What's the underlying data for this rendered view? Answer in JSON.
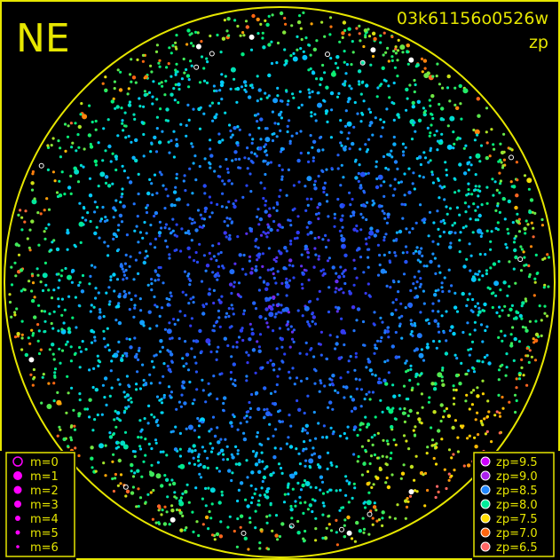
{
  "chart_data": {
    "type": "scatter",
    "title": "NE",
    "image_id": "03k61156o0526w",
    "quantity": "zp",
    "colormap_levels": [
      {
        "label": "zp=9.5",
        "zp": 9.5,
        "color": "#cc00ff"
      },
      {
        "label": "zp=9.0",
        "zp": 9.0,
        "color": "#aa22ee"
      },
      {
        "label": "zp=8.5",
        "zp": 8.5,
        "color": "#2288ff"
      },
      {
        "label": "zp=8.0",
        "zp": 8.0,
        "color": "#00ee99"
      },
      {
        "label": "zp=7.5",
        "zp": 7.5,
        "color": "#ffdd00"
      },
      {
        "label": "zp=7.0",
        "zp": 7.0,
        "color": "#ff6611"
      },
      {
        "label": "zp=6.5",
        "zp": 6.5,
        "color": "#ff6666"
      }
    ],
    "magnitude_levels": [
      {
        "label": "m=0",
        "m": 0
      },
      {
        "label": "m=1",
        "m": 1
      },
      {
        "label": "m=2",
        "m": 2
      },
      {
        "label": "m=3",
        "m": 3
      },
      {
        "label": "m=4",
        "m": 4
      },
      {
        "label": "m=5",
        "m": 5
      },
      {
        "label": "m=6",
        "m": 6
      }
    ],
    "marker_color": "#ff00ff",
    "frame_color": "#e6e600",
    "grid": false
  }
}
